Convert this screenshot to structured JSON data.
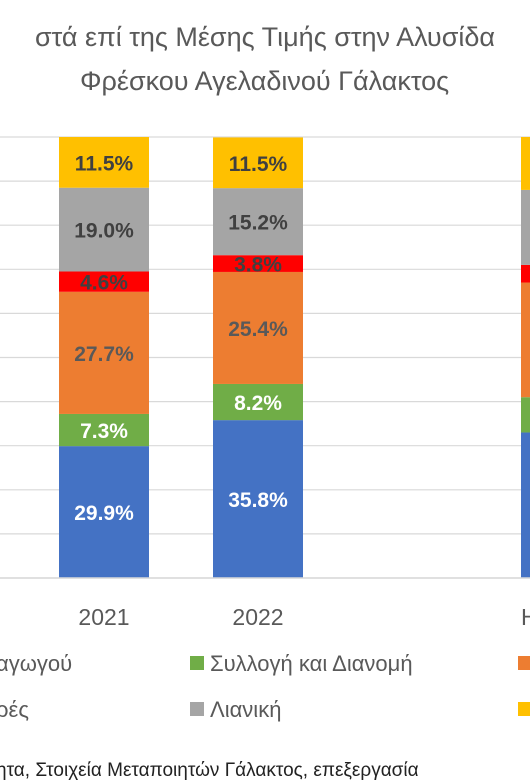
{
  "title_line1": "στά επί της Μέσης Τιμής στην Αλυσίδα",
  "title_line2": "Φρέσκου Αγελαδινού Γάλακτος",
  "legend": {
    "row1_partial": "αγωγού",
    "row1_green": "Συλλογή και Διανομή",
    "row2_partial": "ρές",
    "row2_gray": "Λιανική"
  },
  "footer": "ητα, Στοιχεία Μεταποιητών Γάλακτος, επεξεργασία",
  "colors": {
    "blue": "#4472C4",
    "green": "#70AD47",
    "orange": "#ED7D31",
    "red": "#FF0000",
    "gray": "#A5A5A5",
    "yellow": "#FFC000"
  },
  "chart_data": {
    "type": "bar",
    "stacked": true,
    "categories": [
      "2021",
      "2022"
    ],
    "partial_category_label": "Η",
    "series": [
      {
        "name": "",
        "color": "#4472C4",
        "values": [
          29.9,
          35.8
        ]
      },
      {
        "name": "Συλλογή και Διανομή",
        "color": "#70AD47",
        "values": [
          7.3,
          8.2
        ]
      },
      {
        "name": "",
        "color": "#ED7D31",
        "values": [
          27.7,
          25.4
        ]
      },
      {
        "name": "",
        "color": "#FF0000",
        "values": [
          4.6,
          3.8
        ]
      },
      {
        "name": "Λιανική",
        "color": "#A5A5A5",
        "values": [
          19.0,
          15.2
        ]
      },
      {
        "name": "",
        "color": "#FFC000",
        "values": [
          11.5,
          11.5
        ]
      }
    ],
    "value_labels": [
      [
        "29.9%",
        "7.3%",
        "27.7%",
        "4.6%",
        "19.0%",
        "11.5%"
      ],
      [
        "35.8%",
        "8.2%",
        "25.4%",
        "3.8%",
        "15.2%",
        "11.5%"
      ]
    ],
    "grid": true
  }
}
